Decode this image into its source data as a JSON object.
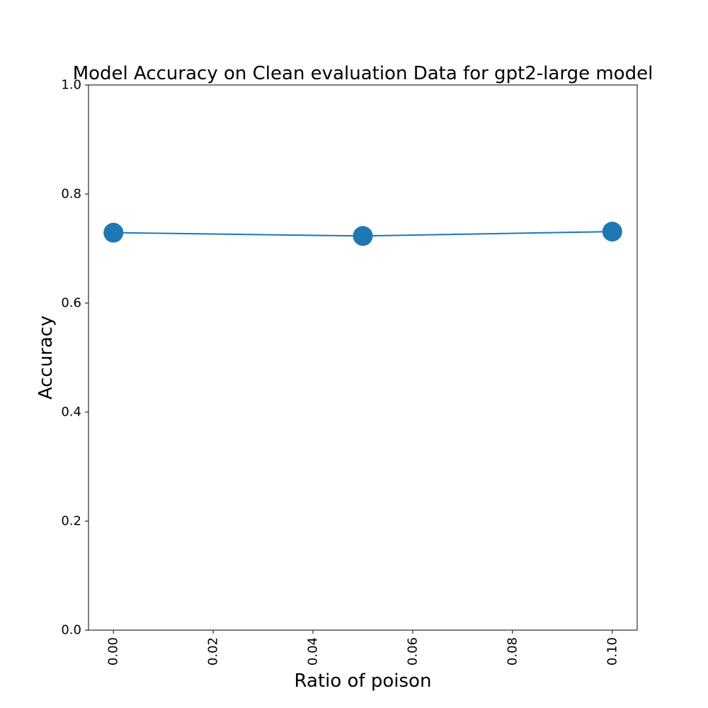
{
  "chart_data": {
    "type": "line",
    "title": "Model Accuracy on Clean evaluation Data for gpt2-large model",
    "xlabel": "Ratio of poison",
    "ylabel": "Accuracy",
    "xlim": [
      -0.005,
      0.105
    ],
    "ylim": [
      0.0,
      1.0
    ],
    "xticks": [
      "0.00",
      "0.02",
      "0.04",
      "0.06",
      "0.08",
      "0.10"
    ],
    "yticks": [
      "0.0",
      "0.2",
      "0.4",
      "0.6",
      "0.8",
      "1.0"
    ],
    "xtick_rotation": "vertical",
    "grid": false,
    "legend": false,
    "series": [
      {
        "x": [
          0.0,
          0.05,
          0.1
        ],
        "y": [
          0.729,
          0.723,
          0.731
        ],
        "color": "#1f77b4",
        "marker": "circle"
      }
    ]
  }
}
